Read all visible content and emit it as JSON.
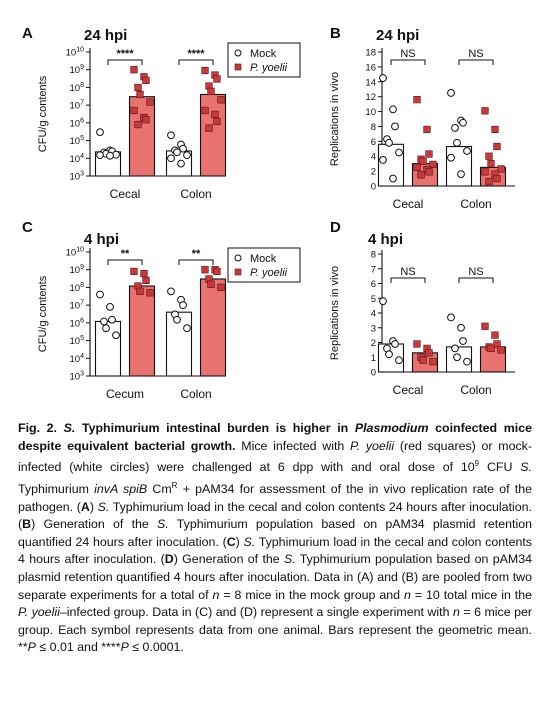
{
  "colors": {
    "mock_fill": "#ffffff",
    "py_fill": "#e8726f",
    "py_point": "#c8393b",
    "axis": "#111111"
  },
  "chart_data": [
    {
      "panel": "A",
      "type": "bar",
      "title": "24 hpi",
      "ylabel": "CFU/g contents",
      "scale": "log",
      "ylim": [
        1000,
        10000000000
      ],
      "yticks": [
        {
          "v": 1000,
          "l": "10",
          "e": "3"
        },
        {
          "v": 10000,
          "l": "10",
          "e": "4"
        },
        {
          "v": 100000,
          "l": "10",
          "e": "5"
        },
        {
          "v": 1000000,
          "l": "10",
          "e": "6"
        },
        {
          "v": 10000000,
          "l": "10",
          "e": "7"
        },
        {
          "v": 100000000,
          "l": "10",
          "e": "8"
        },
        {
          "v": 1000000000,
          "l": "10",
          "e": "9"
        },
        {
          "v": 10000000000,
          "l": "10",
          "e": "10"
        }
      ],
      "categories": [
        "Cecal",
        "Colon"
      ],
      "legend": [
        "Mock",
        "P. yoelii"
      ],
      "sig": [
        "****",
        "****"
      ],
      "series": [
        {
          "name": "Mock",
          "bars": [
            23000,
            26000
          ],
          "points": [
            [
              300000,
              28000,
              25000,
              21000,
              18000,
              16000,
              15000,
              14000
            ],
            [
              200000,
              60000,
              35000,
              28000,
              22000,
              15000,
              10000,
              5000
            ]
          ]
        },
        {
          "name": "P. yoelii",
          "bars": [
            30000000,
            40000000
          ],
          "points": [
            [
              1000000000,
              400000000,
              250000000,
              100000000,
              40000000,
              15000000,
              5000000,
              2000000,
              1500000,
              800000
            ],
            [
              900000000,
              500000000,
              300000000,
              120000000,
              60000000,
              20000000,
              5000000,
              3000000,
              1200000,
              500000
            ]
          ]
        }
      ]
    },
    {
      "panel": "B",
      "type": "bar",
      "title": "24 hpi",
      "ylabel": "Replications in vivo",
      "scale": "linear",
      "ylim": [
        0,
        18
      ],
      "yticks": [
        {
          "v": 0,
          "l": "0"
        },
        {
          "v": 2,
          "l": "2"
        },
        {
          "v": 4,
          "l": "4"
        },
        {
          "v": 6,
          "l": "6"
        },
        {
          "v": 8,
          "l": "8"
        },
        {
          "v": 10,
          "l": "10"
        },
        {
          "v": 12,
          "l": "12"
        },
        {
          "v": 14,
          "l": "14"
        },
        {
          "v": 16,
          "l": "16"
        },
        {
          "v": 18,
          "l": "18"
        }
      ],
      "categories": [
        "Cecal",
        "Colon"
      ],
      "sig": [
        "NS",
        "NS"
      ],
      "series": [
        {
          "name": "Mock",
          "bars": [
            5.6,
            5.3
          ],
          "points": [
            [
              14.5,
              10.3,
              8.0,
              6.3,
              5.8,
              4.5,
              3.5,
              1.0
            ],
            [
              12.5,
              8.8,
              8.5,
              7.8,
              5.8,
              4.7,
              3.8,
              1.6
            ]
          ]
        },
        {
          "name": "P. yoelii",
          "bars": [
            3.0,
            2.5
          ],
          "points": [
            [
              11.6,
              7.6,
              4.3,
              3.6,
              3.3,
              2.9,
              2.5,
              2.2,
              1.9,
              1.5
            ],
            [
              10.1,
              7.6,
              5.3,
              4.0,
              3.0,
              2.3,
              1.9,
              1.6,
              1.0,
              0.6
            ]
          ]
        }
      ]
    },
    {
      "panel": "C",
      "type": "bar",
      "title": "4 hpi",
      "ylabel": "CFU/g contents",
      "scale": "log",
      "ylim": [
        1000,
        10000000000
      ],
      "yticks": [
        {
          "v": 1000,
          "l": "10",
          "e": "3"
        },
        {
          "v": 10000,
          "l": "10",
          "e": "4"
        },
        {
          "v": 100000,
          "l": "10",
          "e": "5"
        },
        {
          "v": 1000000,
          "l": "10",
          "e": "6"
        },
        {
          "v": 10000000,
          "l": "10",
          "e": "7"
        },
        {
          "v": 100000000,
          "l": "10",
          "e": "8"
        },
        {
          "v": 1000000000,
          "l": "10",
          "e": "9"
        },
        {
          "v": 10000000000,
          "l": "10",
          "e": "10"
        }
      ],
      "categories": [
        "Cecum",
        "Colon"
      ],
      "legend": [
        "Mock",
        "P. yoelii"
      ],
      "sig": [
        "**",
        "**"
      ],
      "series": [
        {
          "name": "Mock",
          "bars": [
            1200000,
            4000000
          ],
          "points": [
            [
              40000000,
              8000000,
              1500000,
              1200000,
              500000,
              200000
            ],
            [
              60000000,
              20000000,
              10000000,
              3000000,
              1500000,
              500000
            ]
          ]
        },
        {
          "name": "P. yoelii",
          "bars": [
            120000000,
            300000000
          ],
          "points": [
            [
              800000000,
              600000000,
              250000000,
              120000000,
              60000000,
              50000000
            ],
            [
              1000000000,
              1000000000,
              800000000,
              300000000,
              150000000,
              100000000
            ]
          ]
        }
      ]
    },
    {
      "panel": "D",
      "type": "bar",
      "title": "4 hpi",
      "ylabel": "Replications in vivo",
      "scale": "linear",
      "ylim": [
        0,
        8
      ],
      "yticks": [
        {
          "v": 0,
          "l": "0"
        },
        {
          "v": 1,
          "l": "1"
        },
        {
          "v": 2,
          "l": "2"
        },
        {
          "v": 3,
          "l": "3"
        },
        {
          "v": 4,
          "l": "4"
        },
        {
          "v": 5,
          "l": "5"
        },
        {
          "v": 6,
          "l": "6"
        },
        {
          "v": 7,
          "l": "7"
        },
        {
          "v": 8,
          "l": "8"
        }
      ],
      "categories": [
        "Cecal",
        "Colon"
      ],
      "sig": [
        "NS",
        "NS"
      ],
      "series": [
        {
          "name": "Mock",
          "bars": [
            1.9,
            1.7
          ],
          "points": [
            [
              4.8,
              2.1,
              1.9,
              1.6,
              1.2,
              0.8
            ],
            [
              3.7,
              3.0,
              2.1,
              1.6,
              1.0,
              0.7
            ]
          ]
        },
        {
          "name": "P. yoelii",
          "bars": [
            1.3,
            1.7
          ],
          "points": [
            [
              1.9,
              1.6,
              1.3,
              1.0,
              0.8,
              0.7
            ],
            [
              3.1,
              2.5,
              1.9,
              1.7,
              1.6,
              1.5
            ]
          ]
        }
      ]
    }
  ],
  "caption": {
    "fig_label": "Fig. 2.",
    "title_parts": [
      " ",
      "S.",
      " Typhimurium intestinal burden is higher in ",
      "Plasmodium",
      " coinfected mice despite equivalent bacterial growth."
    ],
    "body_parts": [
      " Mice infected with ",
      "P. yoelii",
      " (red squares) or mock-infected (white circles) were challenged at 6 dpp with and oral dose of 10",
      "9",
      " CFU ",
      "S.",
      " Typhimurium ",
      "invA spiB",
      " Cm",
      "R",
      " + pAM34 for assessment of the in vivo replication rate of the pathogen. (",
      "A",
      ") ",
      "S.",
      " Typhimurium load in the cecal and colon contents 24 hours after inoculation. (",
      "B",
      ") Generation of the ",
      "S.",
      " Typhimurium population based on pAM34 plasmid retention quantified 24 hours after inoculation. (",
      "C",
      ") ",
      "S.",
      " Typhimurium load in the cecal and colon contents 4 hours after inoculation. (",
      "D",
      ") Generation of the ",
      "S.",
      " Typhimurium population based on pAM34 plasmid retention quantified 4 hours after inoculation. Data in (A) and (B) are pooled from two separate experiments for a total of ",
      "n",
      " = 8 mice in the mock group and ",
      "n",
      " = 10 total mice in the ",
      "P. yoelii",
      "–infected group. Data in (C) and (D) represent a single experiment with ",
      "n",
      " = 6 mice per group. Each symbol represents data from one animal. Bars represent the geometric mean. **",
      "P",
      " ≤ 0.01 and ****",
      "P",
      " ≤ 0.0001."
    ]
  }
}
